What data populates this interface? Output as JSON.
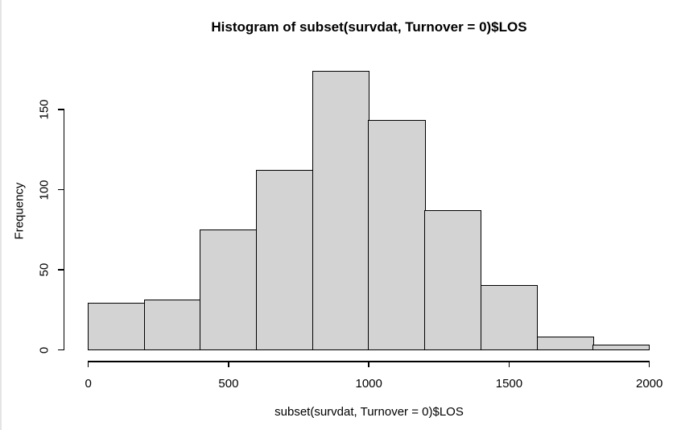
{
  "chart_data": {
    "type": "bar",
    "subtype": "histogram",
    "title": "Histogram of subset(survdat, Turnover = 0)$LOS",
    "xlabel": "subset(survdat, Turnover = 0)$LOS",
    "ylabel": "Frequency",
    "bin_edges": [
      0,
      200,
      400,
      600,
      800,
      1000,
      1200,
      1400,
      1600,
      1800,
      2000
    ],
    "values": [
      29,
      31,
      75,
      112,
      174,
      143,
      87,
      40,
      8,
      3
    ],
    "xticks": [
      0,
      500,
      1000,
      1500,
      2000
    ],
    "yticks": [
      0,
      50,
      100,
      150
    ],
    "xlim": [
      0,
      2000
    ],
    "ylim": [
      0,
      175
    ],
    "grid": false,
    "legend_position": "none",
    "bar_fill_color": "#d3d3d3",
    "bar_border_color": "#000000",
    "background_color": "#ffffff"
  }
}
